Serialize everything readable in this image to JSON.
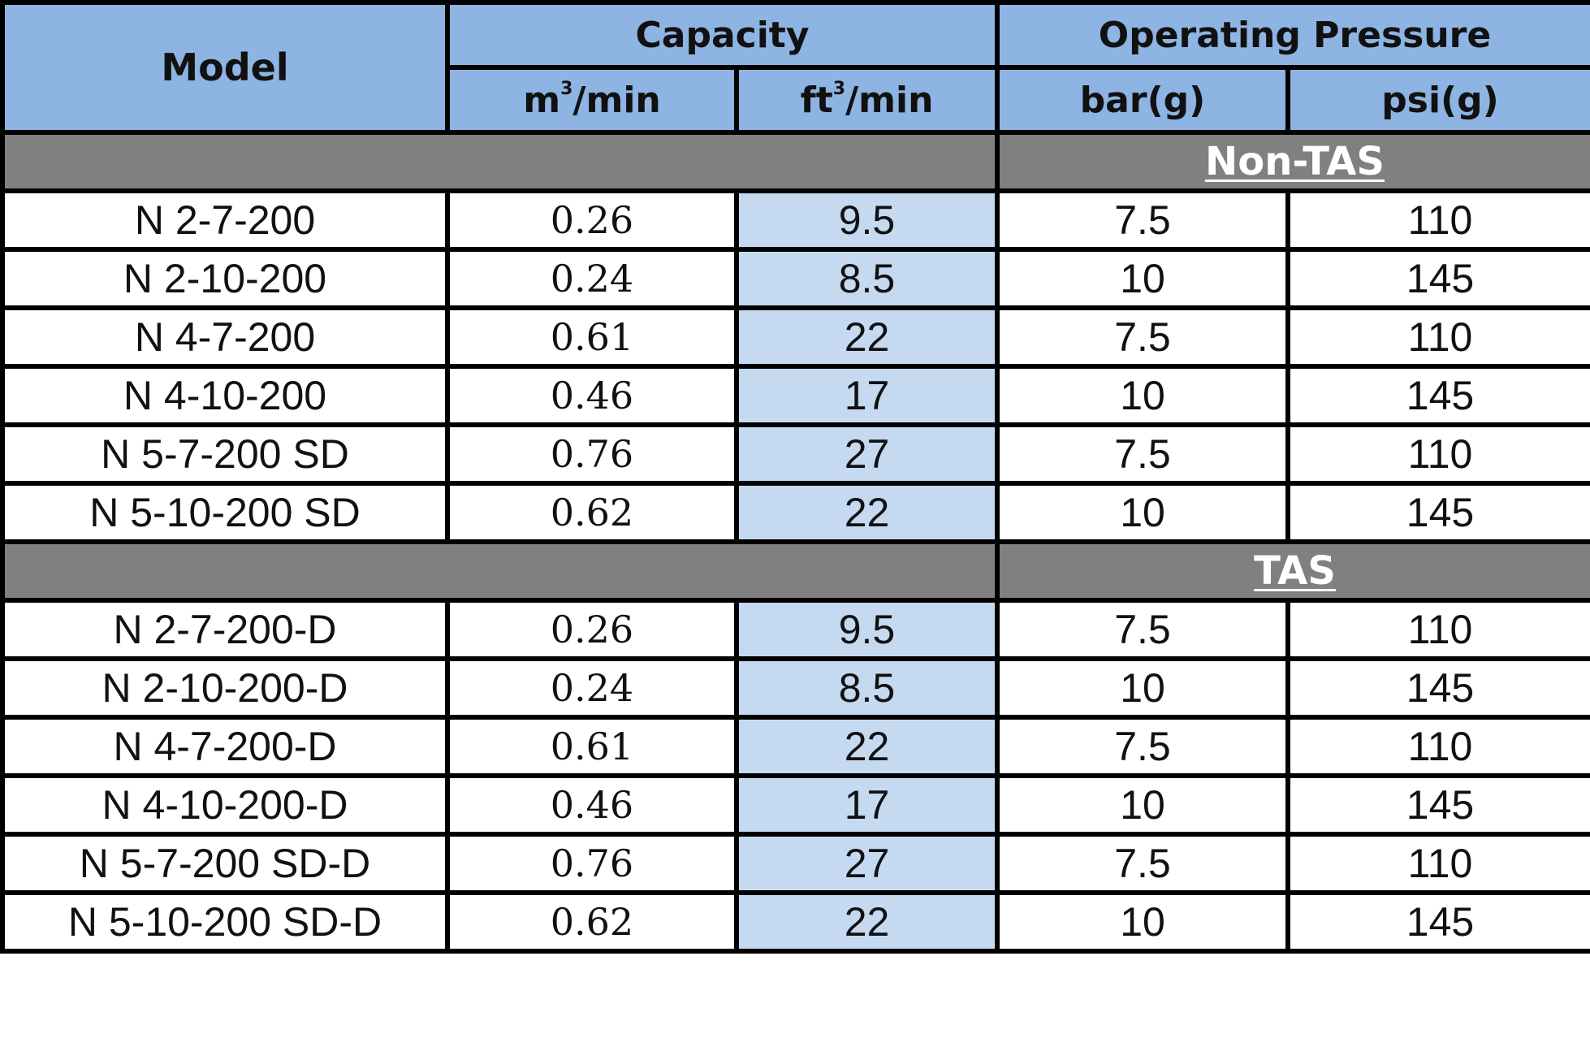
{
  "header": {
    "model": "Model",
    "capacity": "Capacity",
    "operating_pressure": "Operating Pressure",
    "m3_unit_base": "m",
    "m3_unit_sup": "3",
    "m3_unit_rest": "/min",
    "ft3_unit_base": "ft",
    "ft3_unit_sup": "3",
    "ft3_unit_rest": "/min",
    "bar": "bar(g)",
    "psi": "psi(g)"
  },
  "sections": [
    {
      "label": "Non-TAS",
      "rows": [
        {
          "model": "N 2-7-200",
          "m3": "0.26",
          "ft3": "9.5",
          "bar": "7.5",
          "psi": "110"
        },
        {
          "model": "N 2-10-200",
          "m3": "0.24",
          "ft3": "8.5",
          "bar": "10",
          "psi": "145"
        },
        {
          "model": "N 4-7-200",
          "m3": "0.61",
          "ft3": "22",
          "bar": "7.5",
          "psi": "110"
        },
        {
          "model": "N 4-10-200",
          "m3": "0.46",
          "ft3": "17",
          "bar": "10",
          "psi": "145"
        },
        {
          "model": "N 5-7-200 SD",
          "m3": "0.76",
          "ft3": "27",
          "bar": "7.5",
          "psi": "110"
        },
        {
          "model": "N 5-10-200 SD",
          "m3": "0.62",
          "ft3": "22",
          "bar": "10",
          "psi": "145"
        }
      ]
    },
    {
      "label": "TAS",
      "rows": [
        {
          "model": "N 2-7-200-D",
          "m3": "0.26",
          "ft3": "9.5",
          "bar": "7.5",
          "psi": "110"
        },
        {
          "model": "N 2-10-200-D",
          "m3": "0.24",
          "ft3": "8.5",
          "bar": "10",
          "psi": "145"
        },
        {
          "model": "N 4-7-200-D",
          "m3": "0.61",
          "ft3": "22",
          "bar": "7.5",
          "psi": "110"
        },
        {
          "model": "N 4-10-200-D",
          "m3": "0.46",
          "ft3": "17",
          "bar": "10",
          "psi": "145"
        },
        {
          "model": "N 5-7-200 SD-D",
          "m3": "0.76",
          "ft3": "27",
          "bar": "7.5",
          "psi": "110"
        },
        {
          "model": "N 5-10-200 SD-D",
          "m3": "0.62",
          "ft3": "22",
          "bar": "10",
          "psi": "145"
        }
      ]
    }
  ],
  "colors": {
    "header_bg": "#8db4e2",
    "section_bg": "#808080",
    "ft3_column_bg": "#c5d9f1",
    "border": "#000000"
  }
}
